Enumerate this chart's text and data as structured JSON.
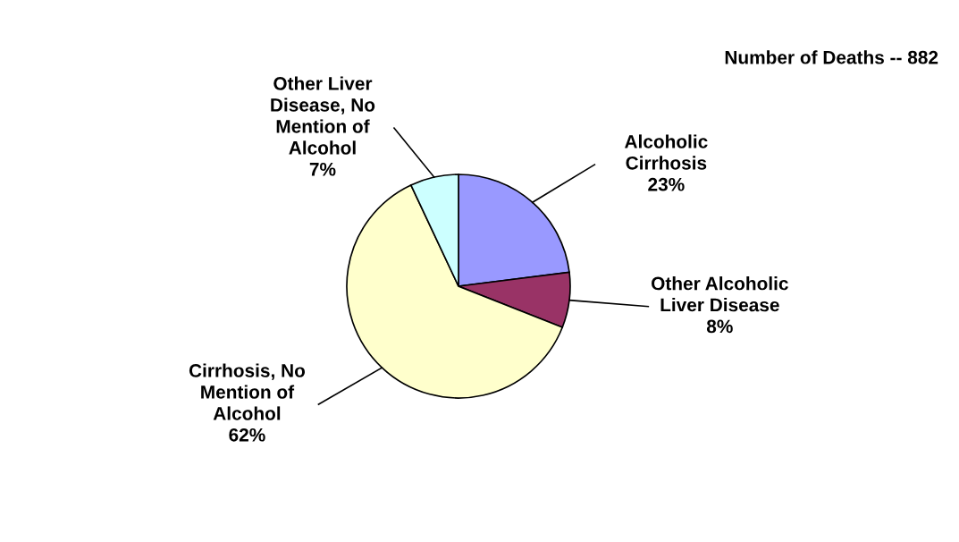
{
  "chart_data": {
    "type": "pie",
    "title": "Number of Deaths -- 882",
    "categories": [
      "Alcoholic\nCirrhosis",
      "Other Alcoholic\nLiver Disease",
      "Cirrhosis, No\nMention of\nAlcohol",
      "Other Liver\nDisease, No\nMention of\nAlcohol"
    ],
    "values": [
      23,
      8,
      62,
      7
    ],
    "value_labels": [
      "23%",
      "8%",
      "62%",
      "7%"
    ],
    "colors": [
      "#9999ff",
      "#993366",
      "#ffffcc",
      "#ccffff"
    ]
  }
}
